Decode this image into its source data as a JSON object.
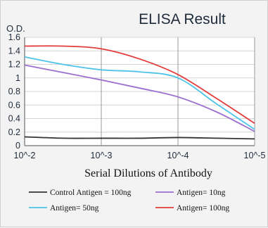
{
  "chart_data": {
    "type": "line",
    "title": "ELISA Result",
    "ylabel": "O.D.",
    "xlabel": "Serial Dilutions  of Antibody",
    "x_categories": [
      "10^-2",
      "10^-3",
      "10^-4",
      "10^-5"
    ],
    "ylim": [
      0,
      1.6
    ],
    "yticks": [
      "0",
      "0.2",
      "0.4",
      "0.6",
      "0.8",
      "1",
      "1.2",
      "1.4",
      "1.6"
    ],
    "grid": true,
    "legend_position": "bottom",
    "series": [
      {
        "name": "Control Antigen = 100ng",
        "color": "#333333",
        "x": [
          0,
          0.5,
          1,
          1.5,
          2,
          2.5,
          3
        ],
        "values": [
          0.13,
          0.11,
          0.11,
          0.11,
          0.12,
          0.11,
          0.1
        ]
      },
      {
        "name": "Antigen= 10ng",
        "color": "#9b6fd0",
        "x": [
          0,
          0.5,
          1,
          1.5,
          2,
          2.5,
          3
        ],
        "values": [
          1.19,
          1.08,
          0.97,
          0.85,
          0.72,
          0.5,
          0.21
        ]
      },
      {
        "name": "Antigen= 50ng",
        "color": "#4ec3ea",
        "x": [
          0,
          0.5,
          1,
          1.5,
          2,
          2.5,
          3
        ],
        "values": [
          1.31,
          1.2,
          1.12,
          1.09,
          1.0,
          0.62,
          0.24
        ]
      },
      {
        "name": "Antigen= 100ng",
        "color": "#e23b3b",
        "x": [
          0,
          0.5,
          1,
          1.5,
          2,
          2.5,
          3
        ],
        "values": [
          1.47,
          1.47,
          1.43,
          1.28,
          1.05,
          0.7,
          0.33
        ]
      }
    ]
  }
}
